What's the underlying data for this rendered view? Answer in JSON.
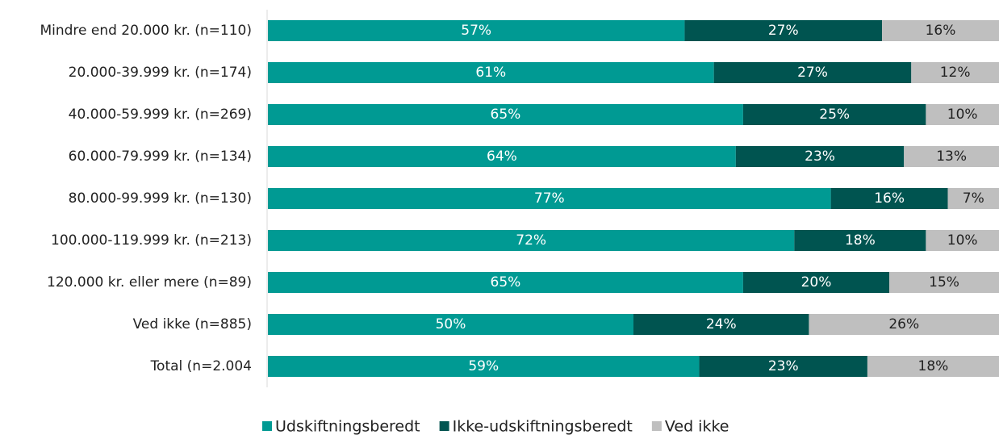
{
  "chart_data": {
    "type": "stacked_bar_horizontal",
    "categories": [
      "Mindre end 20.000 kr. (n=110)",
      "20.000-39.999 kr. (n=174)",
      "40.000-59.999 kr. (n=269)",
      "60.000-79.999 kr. (n=134)",
      "80.000-99.999 kr. (n=130)",
      "100.000-119.999 kr. (n=213)",
      "120.000 kr. eller mere (n=89)",
      "Ved ikke (n=885)",
      "Total (n=2.004"
    ],
    "series": [
      {
        "name": "Udskiftningsberedt",
        "color": "#009a93",
        "values": [
          57,
          61,
          65,
          64,
          77,
          72,
          65,
          50,
          59
        ],
        "value_labels": [
          "57%",
          "61%",
          "65%",
          "64%",
          "77%",
          "72%",
          "65%",
          "50%",
          "59%"
        ]
      },
      {
        "name": "Ikke-udskiftningsberedt",
        "color": "#005450",
        "values": [
          27,
          27,
          25,
          23,
          16,
          18,
          20,
          24,
          23
        ],
        "value_labels": [
          "27%",
          "27%",
          "25%",
          "23%",
          "16%",
          "18%",
          "20%",
          "24%",
          "23%"
        ]
      },
      {
        "name": "Ved ikke",
        "color": "#bfbfbf",
        "values": [
          16,
          12,
          10,
          13,
          7,
          10,
          15,
          26,
          18
        ],
        "value_labels": [
          "16%",
          "12%",
          "10%",
          "13%",
          "7%",
          "10%",
          "15%",
          "26%",
          "18%"
        ]
      }
    ],
    "xlim": [
      0,
      100
    ],
    "legend": "bottom"
  }
}
